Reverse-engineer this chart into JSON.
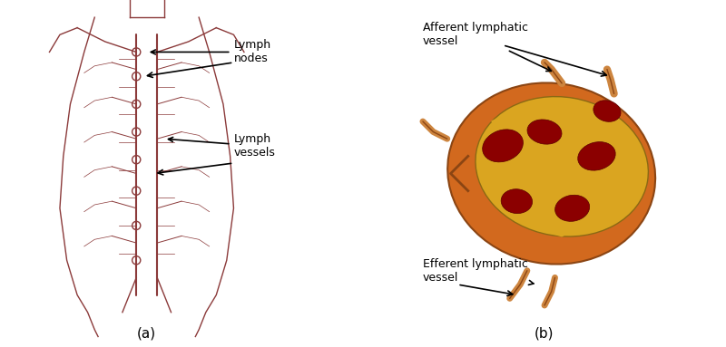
{
  "bg_color": "#ffffff",
  "panel_a_label": "(a)",
  "panel_b_label": "(b)",
  "label_lymph_nodes": "Lymph\nnodes",
  "label_lymph_vessels": "Lymph\nvessels",
  "label_afferent": "Afferent lymphatic\nvessel",
  "label_efferent": "Efferent lymphatic\nvessel",
  "text_color": "#000000",
  "annotation_color": "#000000",
  "body_line_color": "#8B3A3A",
  "node_color": "#cc6600",
  "node_interior": "#cc3300",
  "fig_width": 8.0,
  "fig_height": 3.83,
  "dpi": 100
}
